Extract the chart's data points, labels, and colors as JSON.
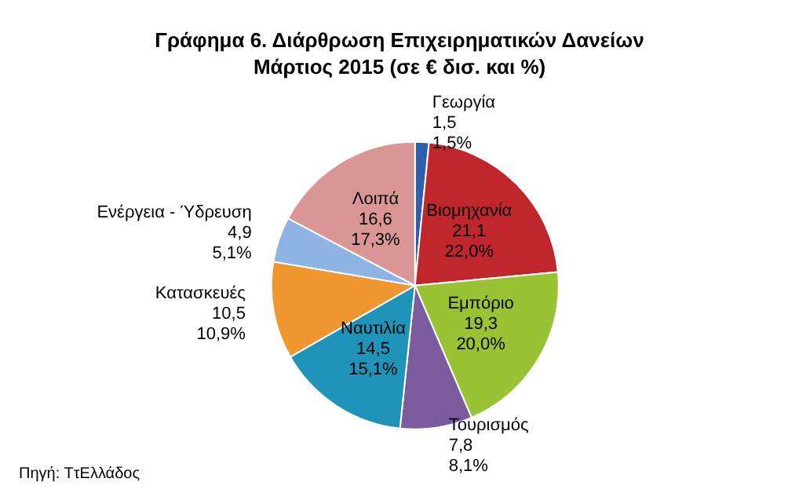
{
  "chart_data": {
    "type": "pie",
    "title": "Γράφημα 6. Διάρθρωση Επιχειρηματικών Δανείων\nΜάρτιος 2015 (σε € δισ. και %)",
    "categories": [
      "Γεωργία",
      "Βιομηχανία",
      "Εμπόριο",
      "Τουρισμός",
      "Ναυτιλία",
      "Κατασκευές",
      "Ενέργεια - Ύδρευση",
      "Λοιπά"
    ],
    "values": [
      1.5,
      21.1,
      19.3,
      7.8,
      14.5,
      10.5,
      4.9,
      16.6
    ],
    "value_labels": [
      "1,5\n1,5%",
      "21,1\n22,0%",
      "19,3\n20,0%",
      "7,8\n8,1%",
      "14,5\n15,1%",
      "10,5\n10,9%",
      "4,9\n5,1%",
      "16,6\n17,3%"
    ],
    "colors": [
      "#2e5fa8",
      "#c0272d",
      "#99c234",
      "#7a5c9e",
      "#1f93b8",
      "#f0962e",
      "#8db4e2",
      "#d99694"
    ],
    "legend": false,
    "annotations": [
      "Πηγή: ΤτΕλλάδος"
    ]
  }
}
